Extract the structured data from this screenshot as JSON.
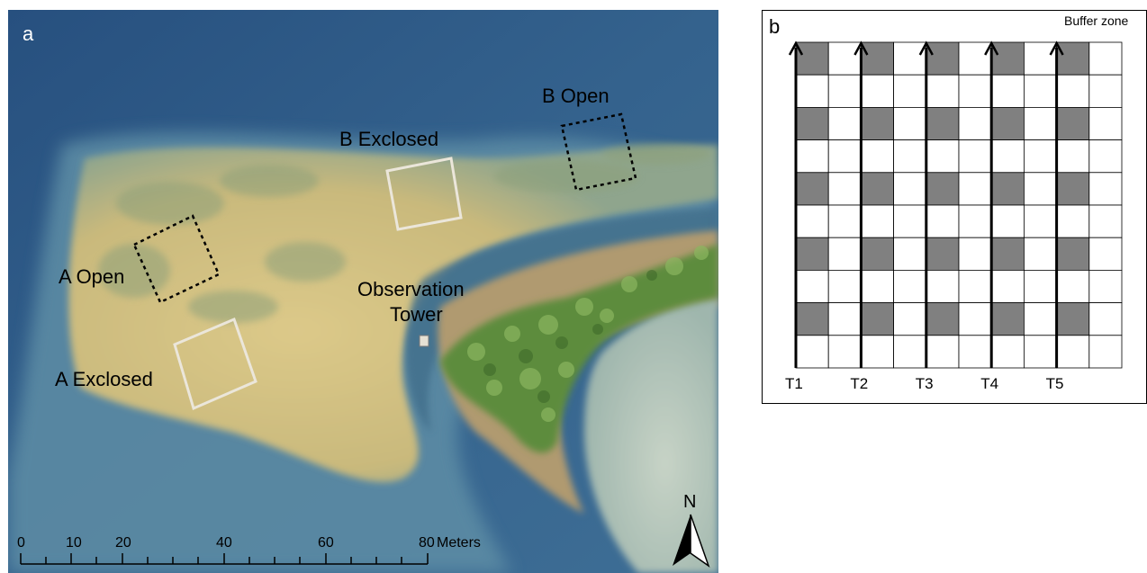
{
  "panel_a": {
    "panel_label": "a",
    "site_labels": {
      "a_open": "A Open",
      "a_exclosed": "A Exclosed",
      "b_exclosed": "B Exclosed",
      "b_open": "B Open",
      "tower_line1": "Observation",
      "tower_line2": "Tower"
    },
    "scale_bar": {
      "ticks": [
        "0",
        "10",
        "20",
        "40",
        "60",
        "80"
      ],
      "unit": "Meters"
    },
    "north_arrow": {
      "label": "N",
      "icon": "north-arrow-icon"
    },
    "colors": {
      "deep_water": "#2f5a86",
      "shallow_water": "#5d8aa4",
      "seagrass_flat": "#d2c07e",
      "sand_bar": "#b59b6c",
      "mangrove": "#6d9a44",
      "exclosure_fence": "#e8e3d8"
    }
  },
  "panel_b": {
    "panel_label": "b",
    "buffer_label": "Buffer zone",
    "grid": {
      "rows": 10,
      "cols": 10
    },
    "transects": [
      "T1",
      "T2",
      "T3",
      "T4",
      "T5"
    ],
    "colors": {
      "sampled_cell": "#808080",
      "empty_cell": "#ffffff",
      "grid_line": "#000000"
    }
  }
}
